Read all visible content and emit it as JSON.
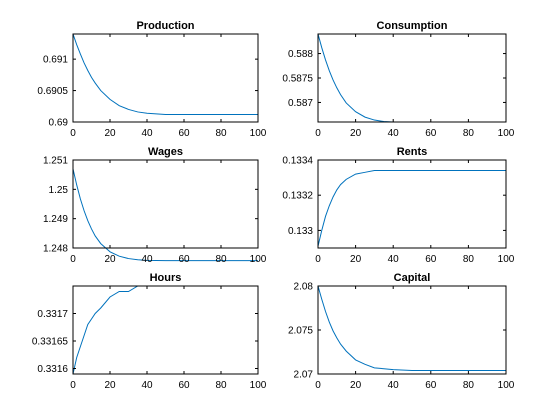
{
  "chart_data": [
    {
      "type": "line",
      "title": "Production",
      "xlim": [
        0,
        100
      ],
      "ylim": [
        0.69,
        0.6914
      ],
      "xticks": [
        0,
        20,
        40,
        60,
        80,
        100
      ],
      "yticks": [
        0.69,
        0.6905,
        0.691
      ],
      "ytick_labels": [
        "0.69",
        "0.6905",
        "0.691"
      ],
      "grid": false,
      "color": "#0072BD",
      "series": [
        {
          "x": [
            0,
            2,
            4,
            6,
            8,
            10,
            12,
            15,
            20,
            25,
            30,
            35,
            40,
            50,
            60,
            70,
            80,
            90,
            100
          ],
          "y": [
            0.6914,
            0.69123,
            0.69108,
            0.69094,
            0.69082,
            0.69071,
            0.69062,
            0.6905,
            0.69036,
            0.69026,
            0.6902,
            0.69016,
            0.69014,
            0.69012,
            0.69012,
            0.69012,
            0.69012,
            0.69012,
            0.69012
          ]
        }
      ]
    },
    {
      "type": "line",
      "title": "Consumption",
      "xlim": [
        0,
        100
      ],
      "ylim": [
        0.5866,
        0.5884
      ],
      "xticks": [
        0,
        20,
        40,
        60,
        80,
        100
      ],
      "yticks": [
        0.587,
        0.5875,
        0.588
      ],
      "ytick_labels": [
        "0.587",
        "0.5875",
        "0.588"
      ],
      "grid": false,
      "color": "#0072BD",
      "series": [
        {
          "x": [
            0,
            2,
            4,
            6,
            8,
            10,
            12,
            15,
            20,
            25,
            30,
            35,
            40,
            50,
            60,
            70,
            80,
            90,
            100
          ],
          "y": [
            0.5884,
            0.58812,
            0.58787,
            0.58765,
            0.58746,
            0.5873,
            0.58716,
            0.58699,
            0.58681,
            0.5867,
            0.58664,
            0.58661,
            0.5866,
            0.5866,
            0.5866,
            0.5866,
            0.5866,
            0.5866,
            0.5866
          ]
        }
      ]
    },
    {
      "type": "line",
      "title": "Wages",
      "xlim": [
        0,
        100
      ],
      "ylim": [
        1.248,
        1.251
      ],
      "xticks": [
        0,
        20,
        40,
        60,
        80,
        100
      ],
      "yticks": [
        1.248,
        1.249,
        1.25,
        1.251
      ],
      "ytick_labels": [
        "1.248",
        "1.249",
        "1.25",
        "1.251"
      ],
      "grid": false,
      "color": "#0072BD",
      "series": [
        {
          "x": [
            0,
            2,
            4,
            6,
            8,
            10,
            12,
            15,
            20,
            25,
            30,
            35,
            40,
            50,
            60,
            70,
            80,
            90,
            100
          ],
          "y": [
            1.2507,
            1.25015,
            1.24967,
            1.24927,
            1.24893,
            1.24865,
            1.24841,
            1.24815,
            1.24787,
            1.24772,
            1.24764,
            1.2476,
            1.24758,
            1.24757,
            1.24757,
            1.24757,
            1.24757,
            1.24757,
            1.24757
          ]
        }
      ]
    },
    {
      "type": "line",
      "title": "Rents",
      "xlim": [
        0,
        100
      ],
      "ylim": [
        0.1329,
        0.1334
      ],
      "xticks": [
        0,
        20,
        40,
        60,
        80,
        100
      ],
      "yticks": [
        0.133,
        0.1332,
        0.1334
      ],
      "ytick_labels": [
        "0.133",
        "0.1332",
        "0.1334"
      ],
      "grid": false,
      "color": "#0072BD",
      "series": [
        {
          "x": [
            0,
            2,
            4,
            6,
            8,
            10,
            12,
            15,
            20,
            25,
            30,
            35,
            40,
            50,
            60,
            70,
            80,
            90,
            100
          ],
          "y": [
            0.13291,
            0.133,
            0.13308,
            0.13314,
            0.13319,
            0.13323,
            0.13326,
            0.13329,
            0.13332,
            0.13333,
            0.13334,
            0.13334,
            0.13334,
            0.13334,
            0.13334,
            0.13334,
            0.13334,
            0.13334,
            0.13334
          ]
        }
      ]
    },
    {
      "type": "line",
      "title": "Hours",
      "xlim": [
        0,
        100
      ],
      "ylim": [
        0.33159,
        0.33175
      ],
      "xticks": [
        0,
        20,
        40,
        60,
        80,
        100
      ],
      "yticks": [
        0.3316,
        0.33165,
        0.3317
      ],
      "ytick_labels": [
        "0.3316",
        "0.33165",
        "0.3317"
      ],
      "grid": false,
      "color": "#0072BD",
      "series": [
        {
          "x": [
            0,
            2,
            4,
            6,
            8,
            10,
            12,
            15,
            20,
            25,
            30,
            35,
            40,
            50,
            60,
            70,
            80,
            90,
            100
          ],
          "y": [
            0.33159,
            0.33162,
            0.33164,
            0.33166,
            0.33168,
            0.33169,
            0.3317,
            0.33171,
            0.33173,
            0.33174,
            0.33174,
            0.33175,
            0.33175,
            0.33175,
            0.33175,
            0.33175,
            0.33175,
            0.33175,
            0.33175
          ]
        }
      ]
    },
    {
      "type": "line",
      "title": "Capital",
      "xlim": [
        0,
        100
      ],
      "ylim": [
        2.07,
        2.08
      ],
      "xticks": [
        0,
        20,
        40,
        60,
        80,
        100
      ],
      "yticks": [
        2.07,
        2.075,
        2.08
      ],
      "ytick_labels": [
        "2.07",
        "2.075",
        "2.08"
      ],
      "grid": false,
      "color": "#0072BD",
      "series": [
        {
          "x": [
            0,
            2,
            4,
            6,
            8,
            10,
            12,
            15,
            20,
            25,
            30,
            35,
            40,
            50,
            60,
            70,
            80,
            90,
            100
          ],
          "y": [
            2.08,
            2.0785,
            2.0771,
            2.0759,
            2.0749,
            2.0741,
            2.0734,
            2.0726,
            2.0716,
            2.0711,
            2.0707,
            2.0706,
            2.0705,
            2.0704,
            2.0704,
            2.0704,
            2.0704,
            2.0704,
            2.0704
          ]
        }
      ]
    }
  ]
}
